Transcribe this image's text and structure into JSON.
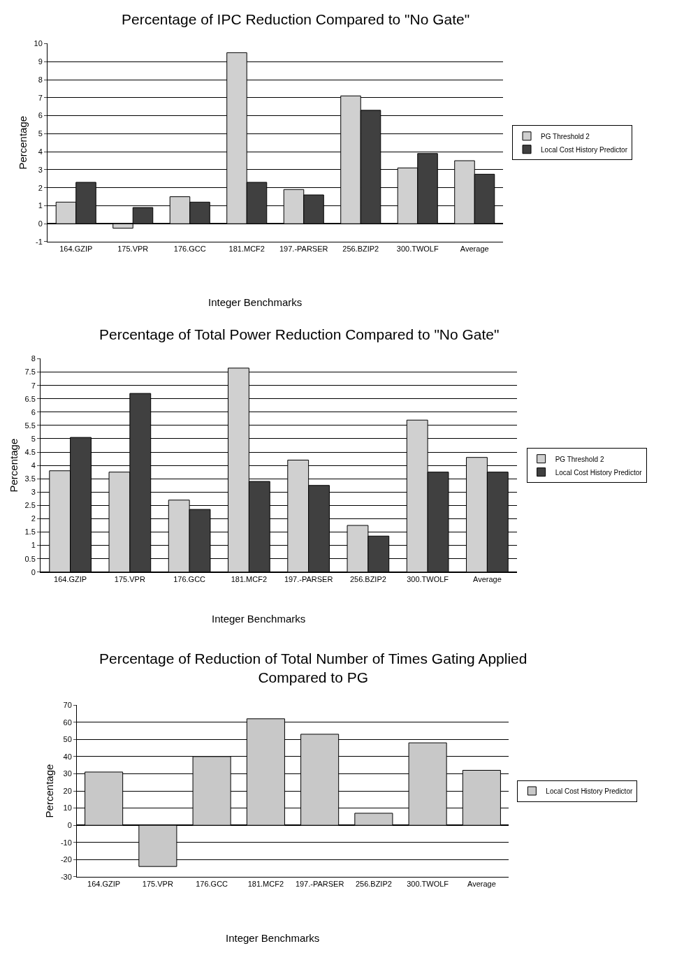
{
  "chart_data": [
    {
      "type": "bar",
      "title": "Percentage of IPC Reduction Compared to \"No Gate\"",
      "xlabel": "Integer Benchmarks",
      "ylabel": "Percentage",
      "categories": [
        "164.GZIP",
        "175.VPR",
        "176.GCC",
        "181.MCF2",
        "197.-PARSER",
        "256.BZIP2",
        "300.TWOLF",
        "Average"
      ],
      "series": [
        {
          "name": "PG Threshold 2",
          "color": "#d0d0d0",
          "values": [
            1.2,
            -0.25,
            1.5,
            9.5,
            1.9,
            7.1,
            3.1,
            3.5
          ]
        },
        {
          "name": "Local Cost History Predictor",
          "color": "#404040",
          "values": [
            2.3,
            0.9,
            1.2,
            2.3,
            1.6,
            6.3,
            3.9,
            2.75
          ]
        }
      ],
      "ylim": [
        -1,
        10
      ],
      "yticks": [
        -1,
        0,
        1,
        2,
        3,
        4,
        5,
        6,
        7,
        8,
        9,
        10
      ],
      "grid": "y",
      "legend": "right"
    },
    {
      "type": "bar",
      "title": "Percentage of Total Power Reduction Compared to \"No Gate\"",
      "xlabel": "Integer Benchmarks",
      "ylabel": "Percentage",
      "categories": [
        "164.GZIP",
        "175.VPR",
        "176.GCC",
        "181.MCF2",
        "197.-PARSER",
        "256.BZIP2",
        "300.TWOLF",
        "Average"
      ],
      "series": [
        {
          "name": "PG Threshold 2",
          "color": "#d0d0d0",
          "values": [
            3.8,
            3.75,
            2.7,
            7.65,
            4.2,
            1.75,
            5.7,
            4.3
          ]
        },
        {
          "name": "Local Cost History Predictor",
          "color": "#404040",
          "values": [
            5.05,
            6.7,
            2.35,
            3.4,
            3.25,
            1.35,
            3.75,
            3.75
          ]
        }
      ],
      "ylim": [
        0,
        8
      ],
      "yticks": [
        0,
        0.5,
        1,
        1.5,
        2,
        2.5,
        3,
        3.5,
        4,
        4.5,
        5,
        5.5,
        6,
        6.5,
        7,
        7.5,
        8
      ],
      "grid": "y",
      "legend": "right"
    },
    {
      "type": "bar",
      "title": "Percentage of Reduction of Total Number of Times Gating Applied\nCompared to PG",
      "xlabel": "Integer Benchmarks",
      "ylabel": "Percentage",
      "categories": [
        "164.GZIP",
        "175.VPR",
        "176.GCC",
        "181.MCF2",
        "197.-PARSER",
        "256.BZIP2",
        "300.TWOLF",
        "Average"
      ],
      "series": [
        {
          "name": "Local Cost History Predictor",
          "color": "#c8c8c8",
          "values": [
            31,
            -24,
            40,
            62,
            53,
            7,
            48,
            32
          ]
        }
      ],
      "ylim": [
        -30,
        70
      ],
      "yticks": [
        -30,
        -20,
        -10,
        0,
        10,
        20,
        30,
        40,
        50,
        60,
        70
      ],
      "grid": "y",
      "legend": "right"
    }
  ]
}
